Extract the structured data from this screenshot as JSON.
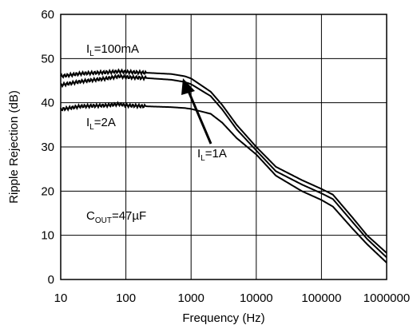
{
  "chart_data": {
    "type": "line",
    "title": "",
    "xlabel": "Frequency (Hz)",
    "ylabel": "Ripple Rejection (dB)",
    "x_scale": "log",
    "xlim": [
      10,
      1000000
    ],
    "ylim": [
      0,
      60
    ],
    "grid": true,
    "x_ticks": [
      "10",
      "100",
      "1000",
      "10000",
      "100000",
      "1000000"
    ],
    "y_ticks": [
      "0",
      "10",
      "20",
      "30",
      "40",
      "50",
      "60"
    ],
    "series": [
      {
        "name": "IL=100mA",
        "x": [
          10,
          20,
          50,
          80,
          100,
          200,
          500,
          800,
          1000,
          2000,
          3000,
          5000,
          10000,
          20000,
          50000,
          100000,
          150000,
          300000,
          500000,
          1000000
        ],
        "y": [
          46,
          46.6,
          46.9,
          47.1,
          47,
          46.8,
          46.5,
          46,
          45.5,
          42.5,
          39.5,
          35,
          30,
          25.5,
          22.5,
          20.5,
          19.2,
          14,
          10,
          6
        ]
      },
      {
        "name": "IL=1A",
        "x": [
          10,
          20,
          50,
          80,
          100,
          200,
          500,
          800,
          1000,
          2000,
          3000,
          5000,
          10000,
          20000,
          50000,
          100000,
          150000,
          300000,
          500000,
          1000000
        ],
        "y": [
          44,
          44.8,
          45.5,
          46,
          45.8,
          45.6,
          45.2,
          44.7,
          44.2,
          41.5,
          38.5,
          34,
          29.2,
          24.5,
          21.5,
          19.5,
          18.2,
          13,
          9.2,
          5
        ]
      },
      {
        "name": "IL=2A",
        "x": [
          10,
          20,
          50,
          80,
          100,
          200,
          500,
          800,
          1000,
          2000,
          3000,
          5000,
          10000,
          20000,
          50000,
          100000,
          150000,
          300000,
          500000,
          1000000
        ],
        "y": [
          38.5,
          39.2,
          39.4,
          39.7,
          39.4,
          39.2,
          39,
          38.8,
          38.6,
          37.5,
          35.5,
          32,
          28.3,
          23.5,
          20,
          18,
          16.5,
          11.5,
          8,
          3.8
        ]
      }
    ],
    "annotations": {
      "il_100ma": {
        "prefix": "I",
        "sub": "L",
        "suffix": "=100mA"
      },
      "il_1a": {
        "prefix": "I",
        "sub": "L",
        "suffix": "=1A"
      },
      "il_2a": {
        "prefix": "I",
        "sub": "L",
        "suffix": "=2A"
      },
      "cout": {
        "prefix": "C",
        "sub": "OUT",
        "suffix": "=47µF"
      }
    }
  }
}
